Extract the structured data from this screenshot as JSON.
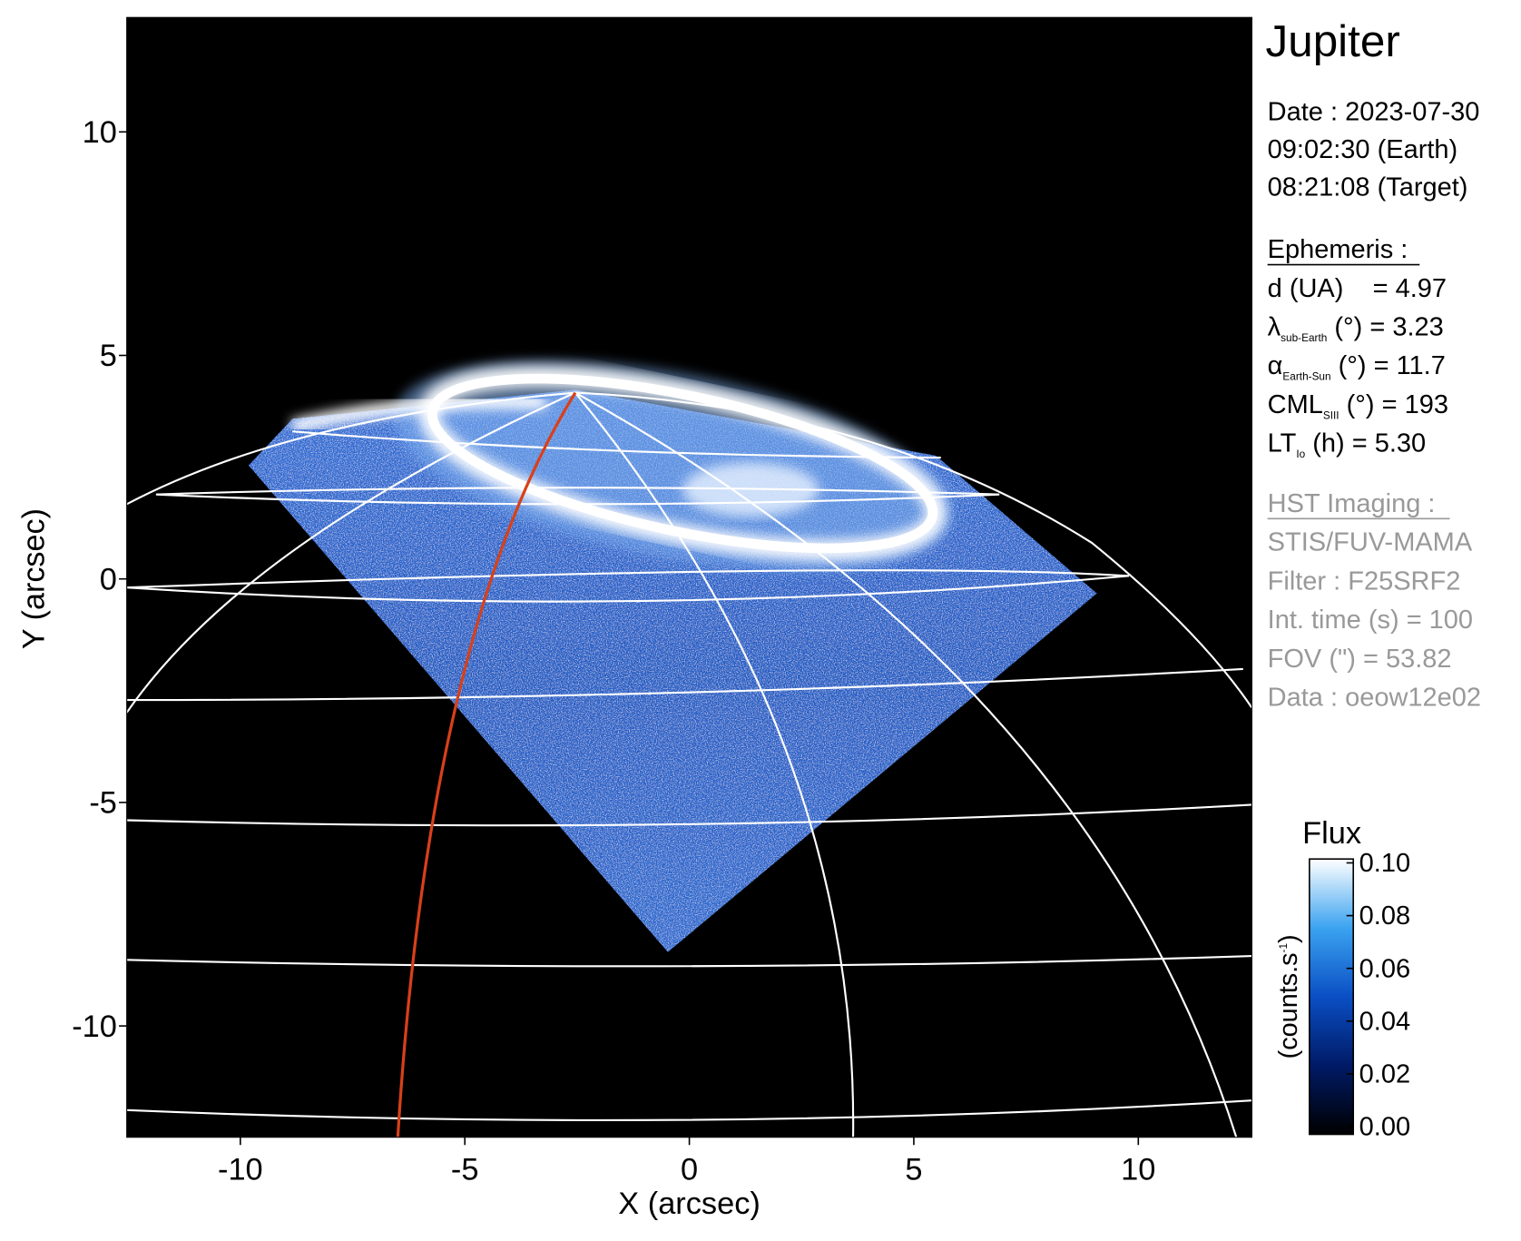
{
  "chart_data": {
    "type": "image",
    "xlabel": "X (arcsec)",
    "ylabel": "Y (arcsec)",
    "xlim": [
      -12.53,
      12.53
    ],
    "ylim": [
      -12.49,
      12.56
    ],
    "xticks": [
      -10,
      -5,
      0,
      5,
      10
    ],
    "yticks": [
      -10,
      -5,
      0,
      5,
      10
    ],
    "colorbar": {
      "title": "Flux",
      "label": "(counts.s",
      "label_sup": "-1",
      "label_end": ")",
      "lim": [
        0,
        0.1
      ],
      "ticks": [
        {
          "value": 0,
          "label": "0.00"
        },
        {
          "value": 0.02,
          "label": "0.02"
        },
        {
          "value": 0.04,
          "label": "0.04"
        },
        {
          "value": 0.06,
          "label": "0.06"
        },
        {
          "value": 0.08,
          "label": "0.08"
        },
        {
          "value": 0.1,
          "label": "0.10"
        }
      ]
    }
  },
  "info": {
    "title": "Jupiter",
    "date": [
      "Date : 2023-07-30",
      "09:02:30 (Earth)",
      "08:21:08 (Target)"
    ],
    "ephemeris": {
      "heading": "Ephemeris :",
      "rows": [
        {
          "main": "d (UA)    = 4.97"
        },
        {
          "main": "λ",
          "sub": "sub-Earth",
          "rest": " (°) = 3.23"
        },
        {
          "main": "α",
          "sub": "Earth-Sun",
          "rest": " (°) = 11.7"
        },
        {
          "main": "CML",
          "sub": "SIII",
          "rest": " (°) = 193"
        },
        {
          "main": "LT",
          "sub": "Io",
          "rest": " (h) = 5.30"
        }
      ]
    },
    "imaging": {
      "heading": "HST Imaging :",
      "rows": [
        "STIS/FUV-MAMA",
        "Filter : F25SRF2",
        "Int. time (s) = 100",
        "FOV (\") = 53.82",
        "Data : oeow12e02"
      ]
    }
  }
}
